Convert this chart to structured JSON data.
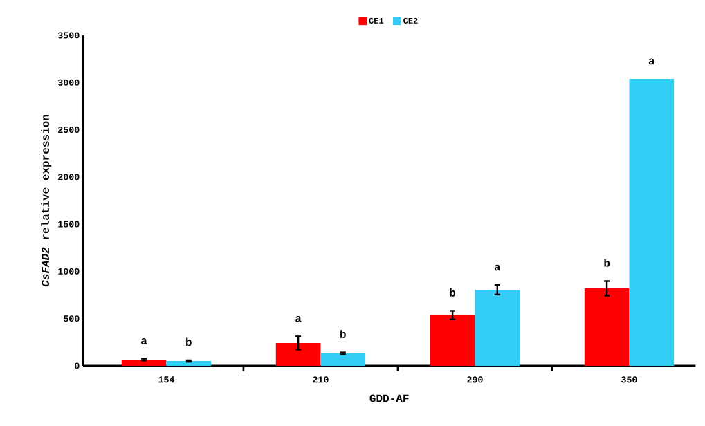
{
  "chart_data": {
    "type": "bar",
    "xlabel": "GDD-AF",
    "ylabel": "*CsFAD2* relative expression",
    "categories": [
      "154",
      "210",
      "290",
      "350"
    ],
    "series": [
      {
        "name": "CE1",
        "color": "#ff0000",
        "values": [
          66,
          242,
          537,
          820
        ],
        "errors": [
          10,
          70,
          45,
          77
        ]
      },
      {
        "name": "CE2",
        "color": "#33ccf5",
        "values": [
          51,
          132,
          805,
          3038
        ],
        "errors": [
          8,
          10,
          50,
          null
        ]
      }
    ],
    "ylim": [
      0,
      3500
    ],
    "yticks": [
      0,
      500,
      1000,
      1500,
      2000,
      2500,
      3000,
      3500
    ],
    "legend": "top",
    "grid": false,
    "annotations": [
      "a",
      "b",
      "a",
      "b",
      "b",
      "a",
      "b",
      "a"
    ]
  }
}
